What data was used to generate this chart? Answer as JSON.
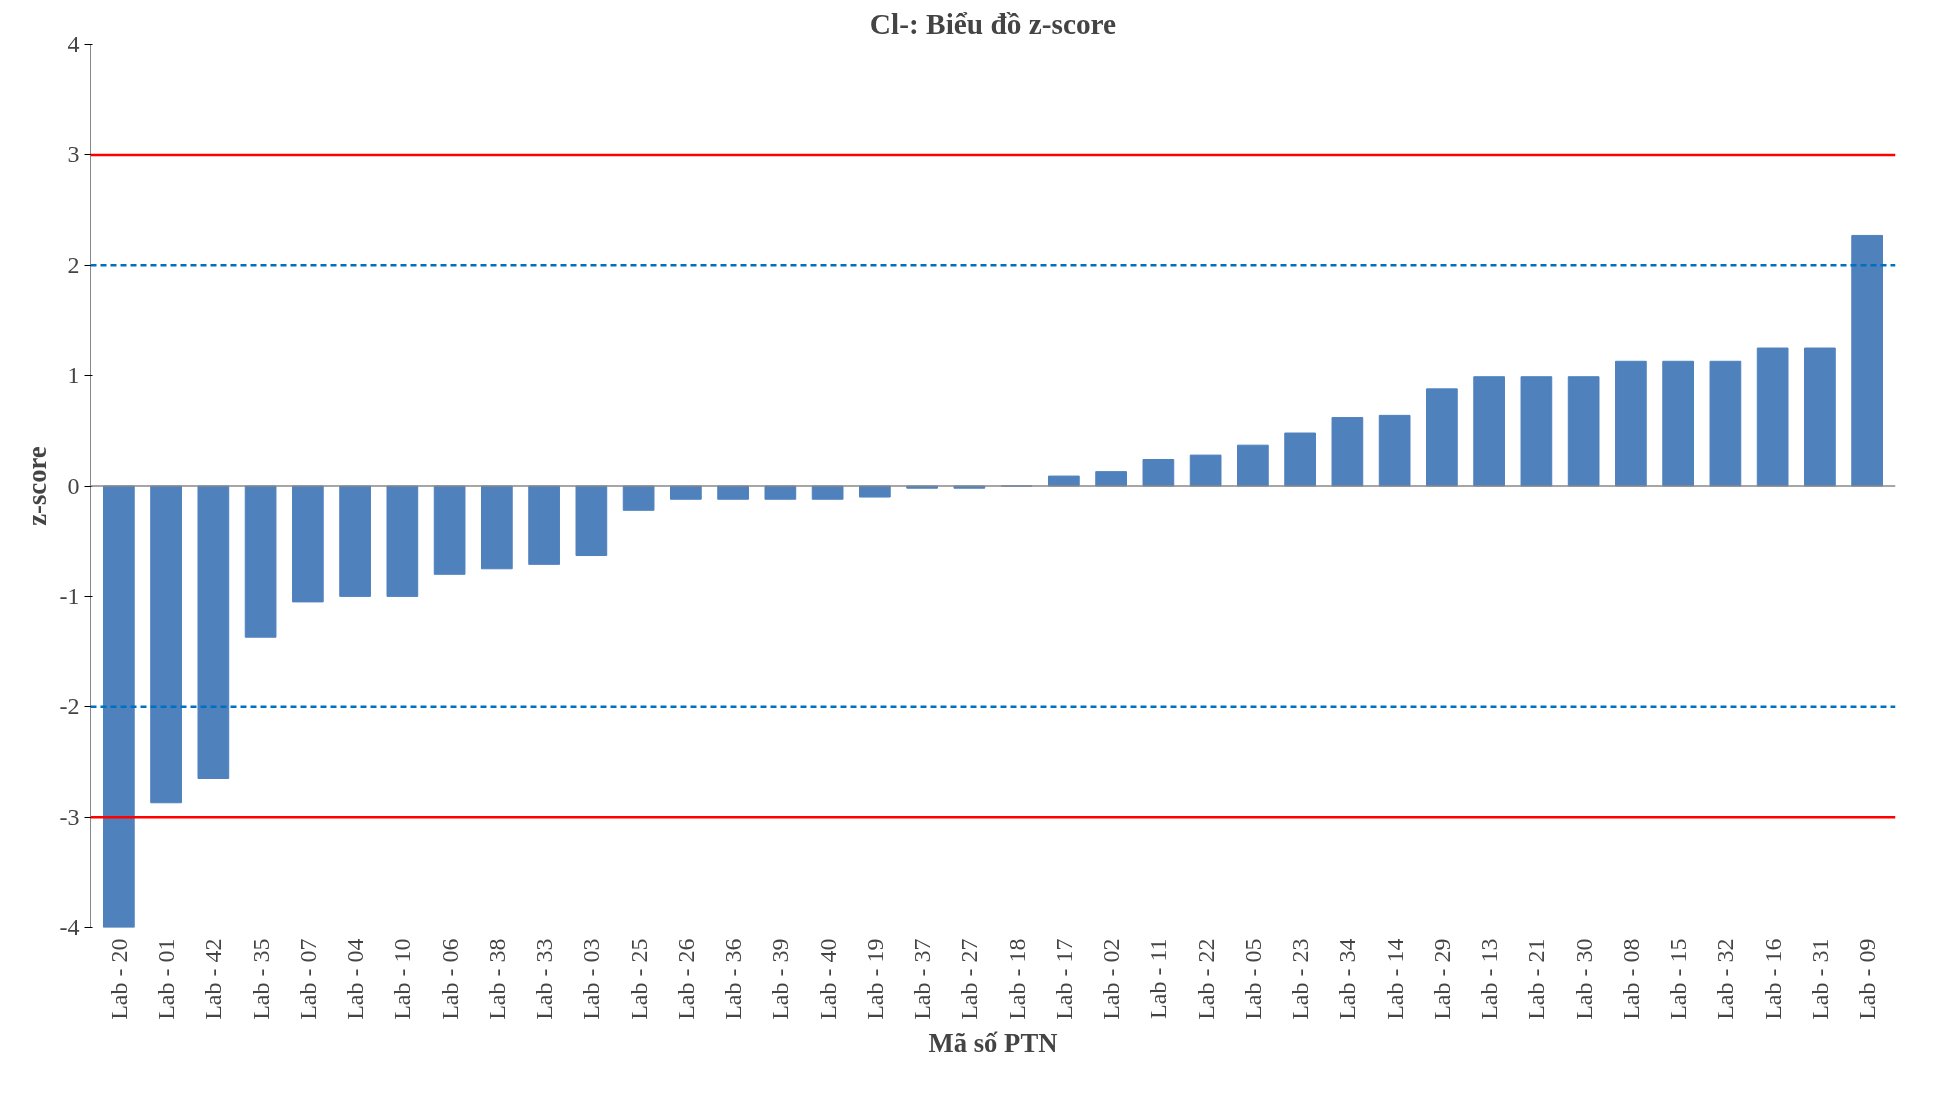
{
  "chart_data": {
    "type": "bar",
    "title": "Cl-: Biểu đồ z-score",
    "xlabel": "Mã số PTN",
    "ylabel": "z-score",
    "categories": [
      "Lab - 20",
      "Lab - 01",
      "Lab - 42",
      "Lab - 35",
      "Lab - 07",
      "Lab - 04",
      "Lab - 10",
      "Lab - 06",
      "Lab - 38",
      "Lab - 33",
      "Lab - 03",
      "Lab - 25",
      "Lab - 26",
      "Lab - 36",
      "Lab - 39",
      "Lab - 40",
      "Lab - 19",
      "Lab - 37",
      "Lab - 27",
      "Lab - 18",
      "Lab - 17",
      "Lab - 02",
      "Lab - 11",
      "Lab - 22",
      "Lab - 05",
      "Lab - 23",
      "Lab - 34",
      "Lab - 14",
      "Lab - 29",
      "Lab - 13",
      "Lab - 21",
      "Lab - 30",
      "Lab - 08",
      "Lab - 15",
      "Lab - 32",
      "Lab - 16",
      "Lab - 31",
      "Lab - 09"
    ],
    "values": [
      -4.0,
      -2.87,
      -2.65,
      -1.37,
      -1.05,
      -1.0,
      -1.0,
      -0.8,
      -0.75,
      -0.71,
      -0.63,
      -0.22,
      -0.12,
      -0.12,
      -0.12,
      -0.12,
      -0.1,
      -0.02,
      -0.02,
      0,
      0.09,
      0.13,
      0.24,
      0.28,
      0.37,
      0.48,
      0.62,
      0.64,
      0.88,
      0.99,
      0.99,
      0.99,
      1.13,
      1.13,
      1.13,
      1.25,
      1.25,
      2.27
    ],
    "color": "#4f81bd",
    "ylim": [
      -4,
      4
    ],
    "yticks": [
      {
        "value": -4,
        "label": "-4"
      },
      {
        "value": -3,
        "label": "-3"
      },
      {
        "value": -2,
        "label": "-2"
      },
      {
        "value": -1,
        "label": "-1"
      },
      0,
      1,
      2,
      3,
      4
    ],
    "grid": false,
    "ref_lines": [
      {
        "axis": "y",
        "value": 3,
        "color": "#ff0000",
        "line_style": "solid"
      },
      {
        "axis": "y",
        "value": 2,
        "color": "#0070c0",
        "line_style": "dashed"
      },
      {
        "axis": "y",
        "value": -2,
        "color": "#0070c0",
        "line_style": "dashed"
      },
      {
        "axis": "y",
        "value": -3,
        "color": "#ff0000",
        "line_style": "solid"
      }
    ]
  }
}
